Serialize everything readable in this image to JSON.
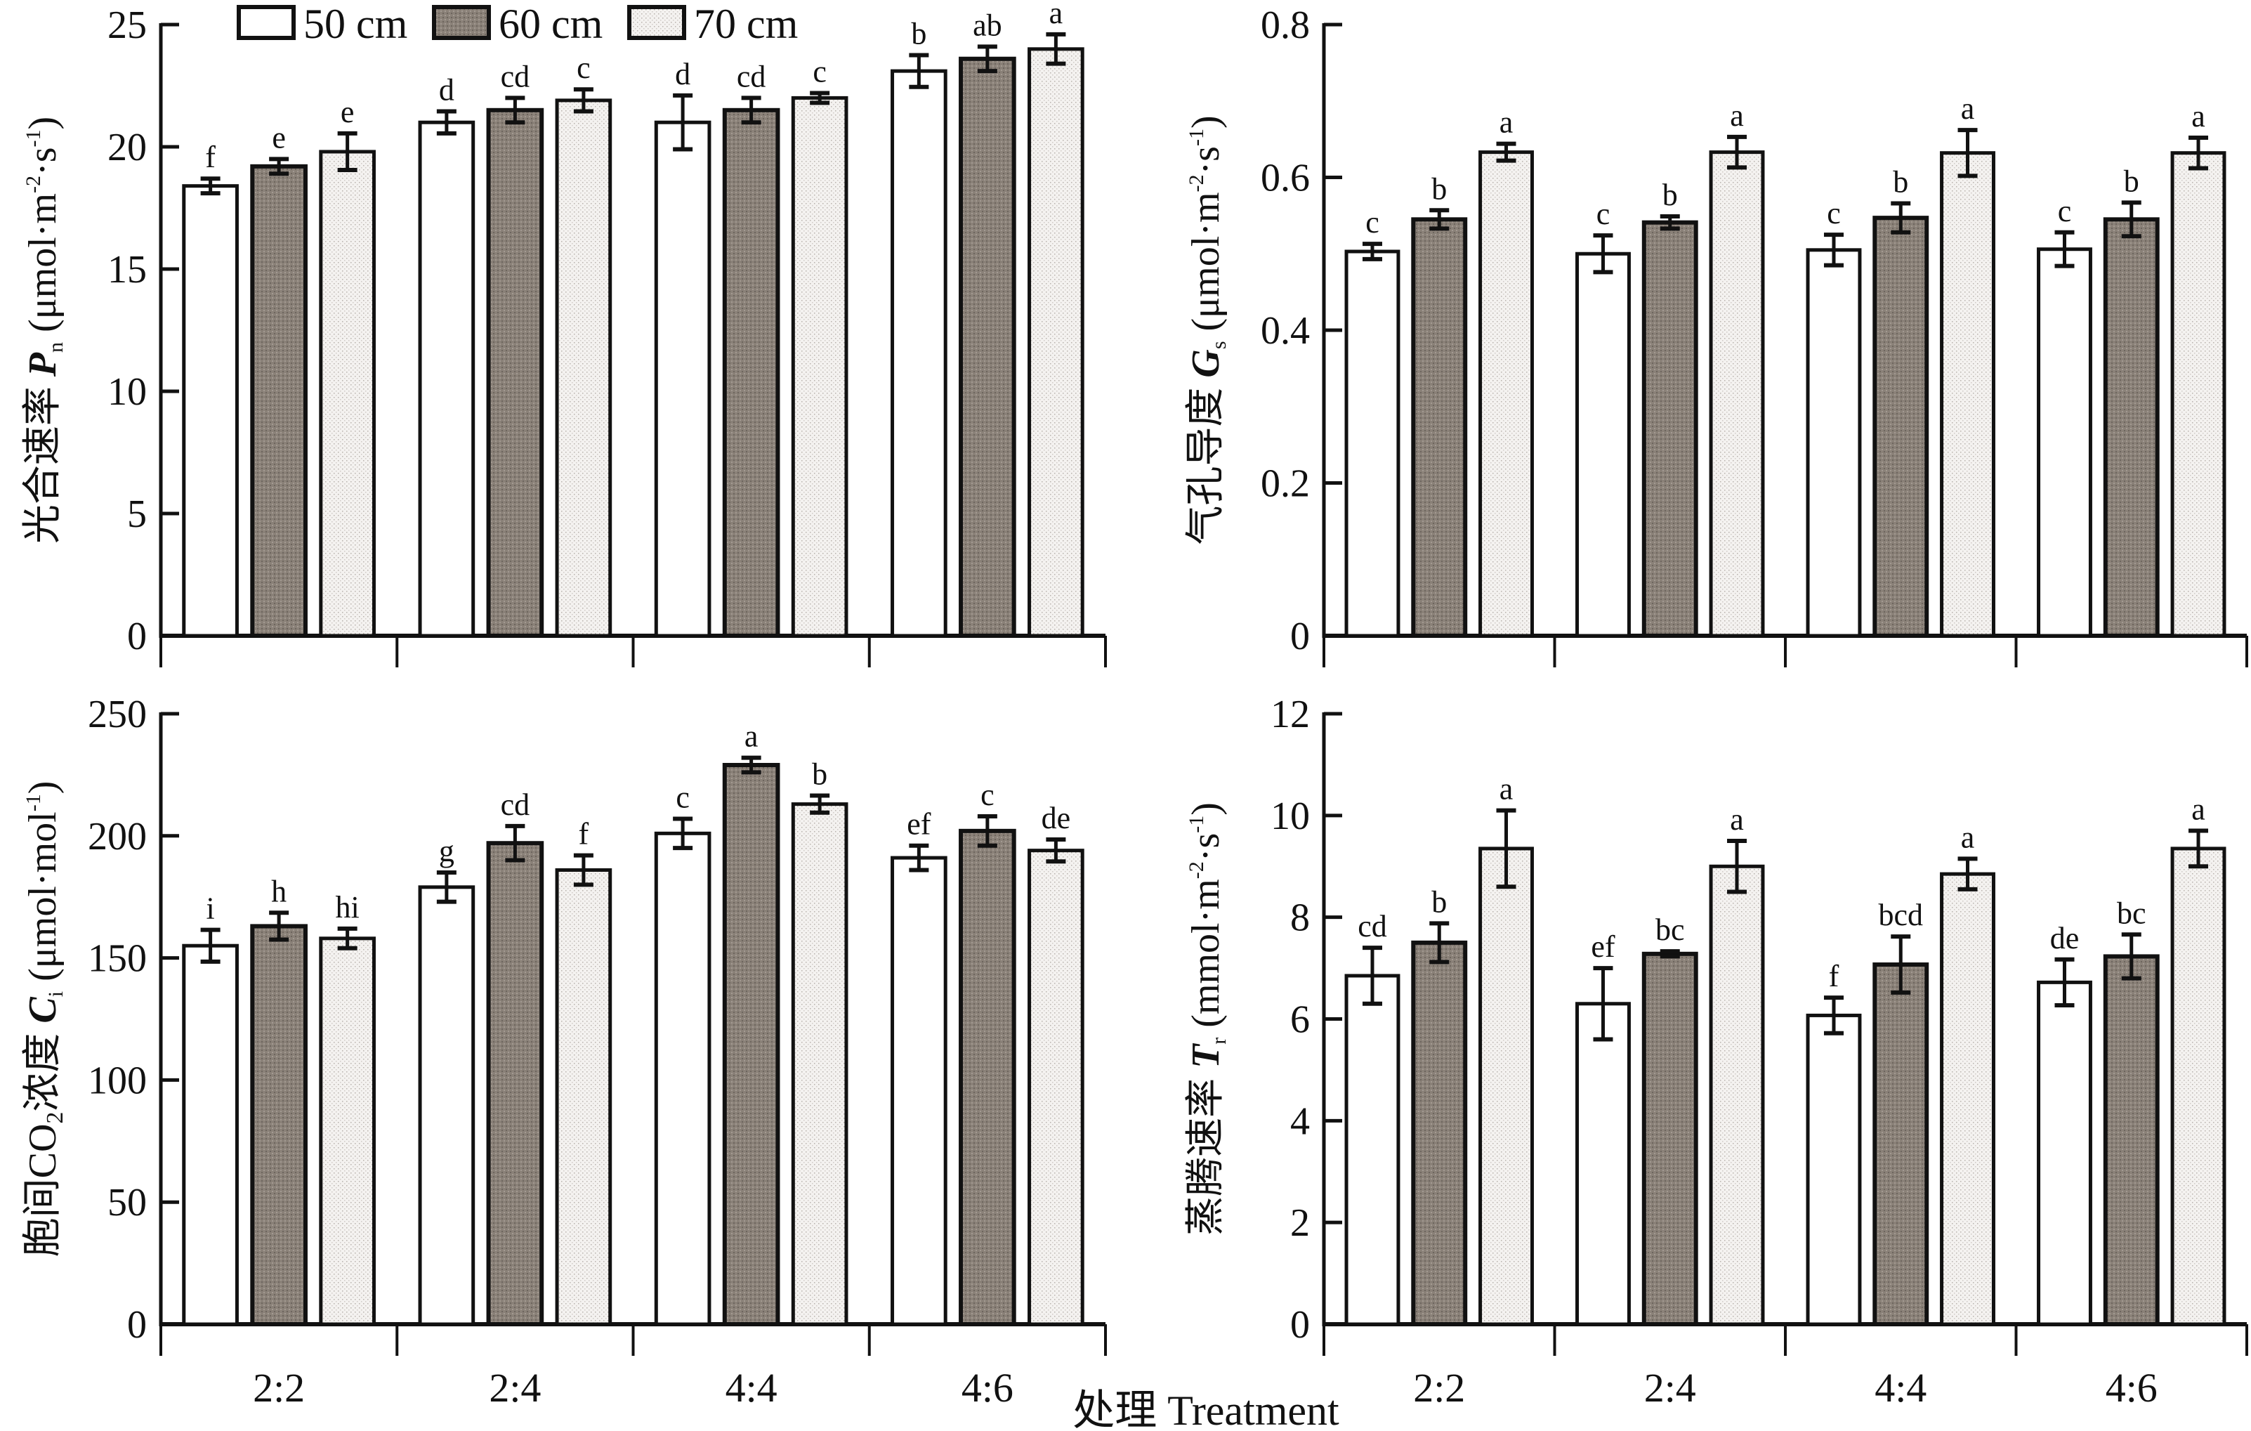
{
  "figure": {
    "x_axis_title": "处理 Treatment",
    "legend": [
      {
        "label": "50 cm",
        "fill": "#ffffff",
        "pattern": "none"
      },
      {
        "label": "60 cm",
        "fill": "#8a8178",
        "pattern": "dense-dots"
      },
      {
        "label": "70 cm",
        "fill": "#ece9e6",
        "pattern": "light-dots"
      }
    ],
    "legend_placement": "top-left panel, top"
  },
  "chart_data": [
    {
      "type": "bar",
      "panel": "top-left",
      "ylabel": "光合速率 Pn (μmol·m⁻²·s⁻¹)",
      "ylabel_parts": {
        "cn": "光合速率 ",
        "sym": "P",
        "sub": "n",
        "unit": "(μmol·m",
        "sup1": "-2",
        "mid": "·s",
        "sup2": "-1",
        "close": ")"
      },
      "ylim": [
        0,
        25
      ],
      "yticks": [
        "0",
        "5",
        "10",
        "15",
        "20",
        "25"
      ],
      "ytick_values": [
        0,
        5,
        10,
        15,
        20,
        25
      ],
      "categories": [
        "2:2",
        "2:4",
        "4:4",
        "4:6"
      ],
      "show_category_labels": false,
      "series": [
        {
          "name": "50 cm",
          "values": [
            18.4,
            21.0,
            21.0,
            23.1
          ],
          "errors": [
            0.3,
            0.45,
            1.1,
            0.65
          ],
          "letters": [
            "f",
            "d",
            "d",
            "b"
          ]
        },
        {
          "name": "60 cm",
          "values": [
            19.2,
            21.5,
            21.5,
            23.6
          ],
          "errors": [
            0.3,
            0.5,
            0.5,
            0.5
          ],
          "letters": [
            "e",
            "cd",
            "cd",
            "ab"
          ]
        },
        {
          "name": "70 cm",
          "values": [
            19.8,
            21.9,
            22.0,
            24.0
          ],
          "errors": [
            0.75,
            0.45,
            0.2,
            0.6
          ],
          "letters": [
            "e",
            "c",
            "c",
            "a"
          ]
        }
      ]
    },
    {
      "type": "bar",
      "panel": "top-right",
      "ylabel": "气孔导度 Gs (μmol·m⁻²·s⁻¹)",
      "ylabel_parts": {
        "cn": "气孔导度 ",
        "sym": "G",
        "sub": "s",
        "unit": "(μmol·m",
        "sup1": "-2",
        "mid": "·s",
        "sup2": "-1",
        "close": ")"
      },
      "ylim": [
        0,
        0.8
      ],
      "yticks": [
        "0",
        "0.2",
        "0.4",
        "0.6",
        "0.8"
      ],
      "ytick_values": [
        0,
        0.2,
        0.4,
        0.6,
        0.8
      ],
      "categories": [
        "2:2",
        "2:4",
        "4:4",
        "4:6"
      ],
      "show_category_labels": false,
      "series": [
        {
          "name": "50 cm",
          "values": [
            0.503,
            0.5,
            0.505,
            0.506
          ],
          "errors": [
            0.01,
            0.024,
            0.02,
            0.022
          ],
          "letters": [
            "c",
            "c",
            "c",
            "c"
          ]
        },
        {
          "name": "60 cm",
          "values": [
            0.545,
            0.541,
            0.547,
            0.545
          ],
          "errors": [
            0.012,
            0.008,
            0.019,
            0.022
          ],
          "letters": [
            "b",
            "b",
            "b",
            "b"
          ]
        },
        {
          "name": "70 cm",
          "values": [
            0.633,
            0.633,
            0.632,
            0.632
          ],
          "errors": [
            0.011,
            0.02,
            0.03,
            0.02
          ],
          "letters": [
            "a",
            "a",
            "a",
            "a"
          ]
        }
      ]
    },
    {
      "type": "bar",
      "panel": "bottom-left",
      "ylabel": "胞间CO₂浓度 Ci (μmol·mol⁻¹)",
      "ylabel_parts": {
        "cn": "胞间CO",
        "cnsub": "2",
        "cn2": "浓度 ",
        "sym": "C",
        "sub": "i",
        "unit": "(μmol·mol",
        "sup1": "-1",
        "close": ")"
      },
      "ylim": [
        0,
        250
      ],
      "yticks": [
        "0",
        "50",
        "100",
        "150",
        "200",
        "250"
      ],
      "ytick_values": [
        0,
        50,
        100,
        150,
        200,
        250
      ],
      "categories": [
        "2:2",
        "2:4",
        "4:4",
        "4:6"
      ],
      "show_category_labels": true,
      "series": [
        {
          "name": "50 cm",
          "values": [
            155,
            179,
            201,
            191
          ],
          "errors": [
            6.5,
            6,
            6,
            5
          ],
          "letters": [
            "i",
            "g",
            "c",
            "ef"
          ]
        },
        {
          "name": "60 cm",
          "values": [
            163,
            197,
            229,
            202
          ],
          "errors": [
            5.5,
            7,
            3,
            6
          ],
          "letters": [
            "h",
            "cd",
            "a",
            "c"
          ]
        },
        {
          "name": "70 cm",
          "values": [
            158,
            186,
            213,
            194
          ],
          "errors": [
            4,
            6,
            3.5,
            4.5
          ],
          "letters": [
            "hi",
            "f",
            "b",
            "de"
          ]
        }
      ]
    },
    {
      "type": "bar",
      "panel": "bottom-right",
      "ylabel": "蒸腾速率 Tr (mmol·m⁻²·s⁻¹)",
      "ylabel_parts": {
        "cn": "蒸腾速率 ",
        "sym": "T",
        "sub": "r",
        "unit": "(mmol·m",
        "sup1": "-2",
        "mid": "·s",
        "sup2": "-1",
        "close": ")"
      },
      "ylim": [
        0,
        12
      ],
      "yticks": [
        "0",
        "2",
        "4",
        "6",
        "8",
        "10",
        "12"
      ],
      "ytick_values": [
        0,
        2,
        4,
        6,
        8,
        10,
        12
      ],
      "categories": [
        "2:2",
        "2:4",
        "4:4",
        "4:6"
      ],
      "show_category_labels": true,
      "series": [
        {
          "name": "50 cm",
          "values": [
            6.85,
            6.3,
            6.07,
            6.72
          ],
          "errors": [
            0.55,
            0.7,
            0.35,
            0.45
          ],
          "letters": [
            "cd",
            "ef",
            "f",
            "de"
          ]
        },
        {
          "name": "60 cm",
          "values": [
            7.5,
            7.28,
            7.07,
            7.23
          ],
          "errors": [
            0.38,
            0.05,
            0.55,
            0.43
          ],
          "letters": [
            "b",
            "bc",
            "bcd",
            "bc"
          ]
        },
        {
          "name": "70 cm",
          "values": [
            9.35,
            9.0,
            8.85,
            9.35
          ],
          "errors": [
            0.75,
            0.5,
            0.3,
            0.35
          ],
          "letters": [
            "a",
            "a",
            "a",
            "a"
          ]
        }
      ]
    }
  ]
}
